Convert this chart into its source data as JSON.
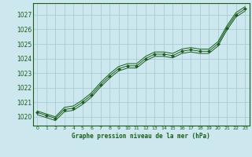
{
  "xlabel": "Graphe pression niveau de la mer (hPa)",
  "bg_color": "#cce8ee",
  "grid_color": "#aaccd4",
  "line_color": "#1a5c1a",
  "text_color": "#1a5c1a",
  "xlim": [
    -0.5,
    23.5
  ],
  "ylim": [
    1019.4,
    1027.8
  ],
  "xticks": [
    0,
    1,
    2,
    3,
    4,
    5,
    6,
    7,
    8,
    9,
    10,
    11,
    12,
    13,
    14,
    15,
    16,
    17,
    18,
    19,
    20,
    21,
    22,
    23
  ],
  "yticks": [
    1020,
    1021,
    1022,
    1023,
    1024,
    1025,
    1026,
    1027
  ],
  "series": [
    {
      "x": [
        0,
        1,
        2,
        3,
        4,
        5,
        6,
        7,
        8,
        9,
        10,
        11,
        12,
        13,
        14,
        15,
        16,
        17,
        18,
        19,
        20,
        21,
        22,
        23
      ],
      "y": [
        1020.3,
        1020.1,
        1019.9,
        1020.5,
        1020.6,
        1021.0,
        1021.5,
        1022.2,
        1022.8,
        1023.3,
        1023.5,
        1023.5,
        1024.0,
        1024.3,
        1024.3,
        1024.2,
        1024.5,
        1024.6,
        1024.5,
        1024.5,
        1025.0,
        1026.1,
        1027.0,
        1027.4
      ],
      "marker": "D",
      "ms": 2.0
    },
    {
      "x": [
        0,
        1,
        2,
        3,
        4,
        5,
        6,
        7,
        8,
        9,
        10,
        11,
        12,
        13,
        14,
        15,
        16,
        17,
        18,
        19,
        20,
        21,
        22,
        23
      ],
      "y": [
        1020.15,
        1019.95,
        1019.75,
        1020.35,
        1020.45,
        1020.85,
        1021.35,
        1022.05,
        1022.65,
        1023.15,
        1023.35,
        1023.35,
        1023.85,
        1024.15,
        1024.15,
        1024.05,
        1024.35,
        1024.45,
        1024.35,
        1024.35,
        1024.85,
        1025.95,
        1026.85,
        1027.25
      ],
      "marker": null,
      "ms": 0
    },
    {
      "x": [
        0,
        1,
        2,
        3,
        4,
        5,
        6,
        7,
        8,
        9,
        10,
        11,
        12,
        13,
        14,
        15,
        16,
        17,
        18,
        19,
        20,
        21,
        22,
        23
      ],
      "y": [
        1020.4,
        1020.2,
        1020.0,
        1020.65,
        1020.75,
        1021.15,
        1021.65,
        1022.35,
        1022.95,
        1023.45,
        1023.65,
        1023.65,
        1024.15,
        1024.45,
        1024.45,
        1024.35,
        1024.65,
        1024.75,
        1024.65,
        1024.65,
        1025.15,
        1026.25,
        1027.15,
        1027.55
      ],
      "marker": null,
      "ms": 0
    }
  ]
}
